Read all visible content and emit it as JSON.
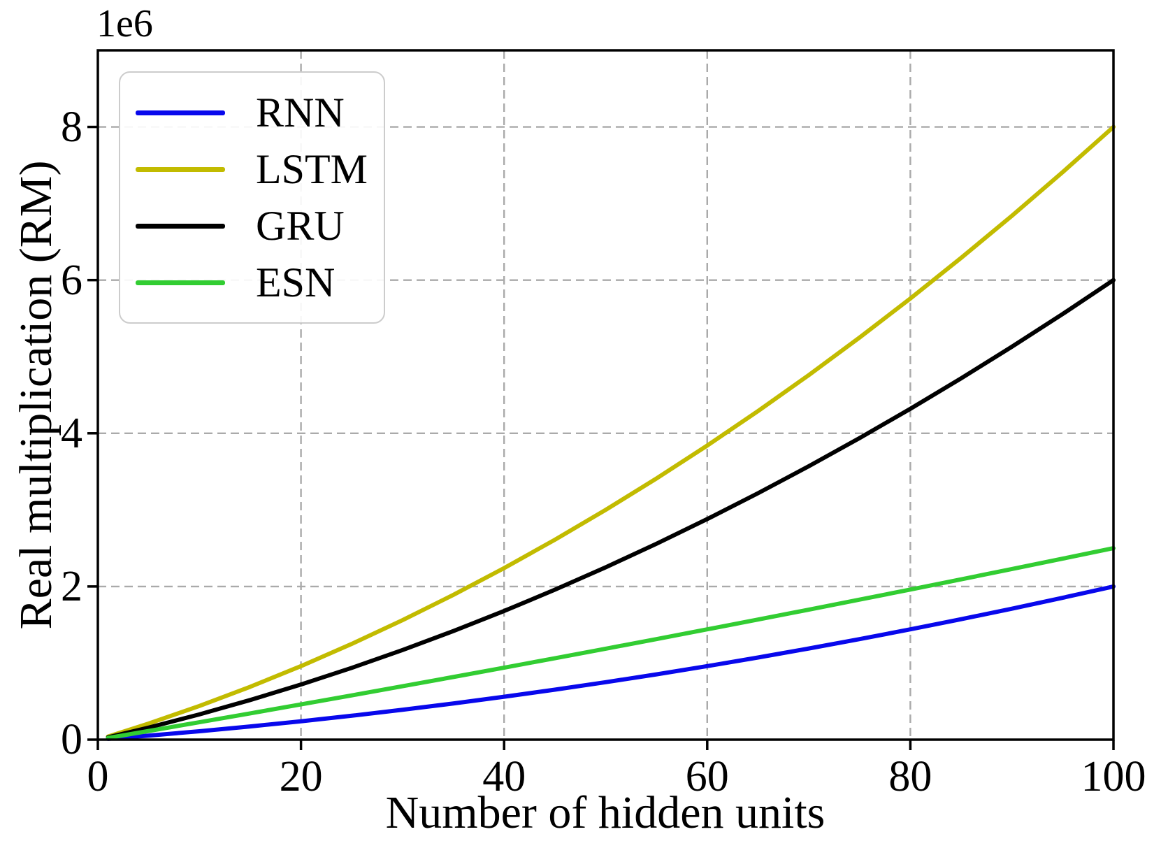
{
  "chart_data": {
    "type": "line",
    "title": "",
    "xlabel": "Number of hidden units",
    "ylabel": "Real multiplication (RM)",
    "y_offset_label": "1e6",
    "xlim": [
      0,
      100
    ],
    "ylim": [
      0,
      9000000
    ],
    "x_ticks": [
      0,
      20,
      40,
      60,
      80,
      100
    ],
    "x_tick_labels": [
      "0",
      "20",
      "40",
      "60",
      "80",
      "100"
    ],
    "y_ticks": [
      0,
      2000000,
      4000000,
      6000000,
      8000000
    ],
    "y_tick_labels": [
      "0",
      "2",
      "4",
      "6",
      "8"
    ],
    "grid": true,
    "grid_style": "dashed",
    "legend_position": "upper-left",
    "x": [
      1,
      5,
      10,
      15,
      20,
      25,
      30,
      35,
      40,
      45,
      50,
      55,
      60,
      65,
      70,
      75,
      80,
      85,
      90,
      95,
      100
    ],
    "series": [
      {
        "name": "RNN",
        "color": "#0808ec",
        "values": [
          10100,
          52500,
          110000,
          172500,
          240000,
          312500,
          390000,
          472500,
          560000,
          652500,
          750000,
          852500,
          960000,
          1072500,
          1190000,
          1312500,
          1440000,
          1572500,
          1710000,
          1852500,
          2000000
        ]
      },
      {
        "name": "LSTM",
        "color": "#c2bb00",
        "values": [
          40400,
          210000,
          440000,
          690000,
          960000,
          1250000,
          1560000,
          1890000,
          2240000,
          2610000,
          3000000,
          3410000,
          3840000,
          4290000,
          4760000,
          5250000,
          5760000,
          6290000,
          6840000,
          7410000,
          8000000
        ]
      },
      {
        "name": "GRU",
        "color": "#000000",
        "values": [
          30300,
          157500,
          330000,
          517500,
          720000,
          937500,
          1170000,
          1417500,
          1680000,
          1957500,
          2250000,
          2557500,
          2880000,
          3217500,
          3570000,
          3937500,
          4320000,
          4717500,
          5130000,
          5557500,
          6000000
        ]
      },
      {
        "name": "ESN",
        "color": "#32cd32",
        "values": [
          22525,
          113125,
          227500,
          343125,
          460000,
          578125,
          697500,
          818125,
          940000,
          1063125,
          1187500,
          1313125,
          1440000,
          1568125,
          1697500,
          1828125,
          1960000,
          2093125,
          2227500,
          2363125,
          2500000
        ]
      }
    ]
  }
}
